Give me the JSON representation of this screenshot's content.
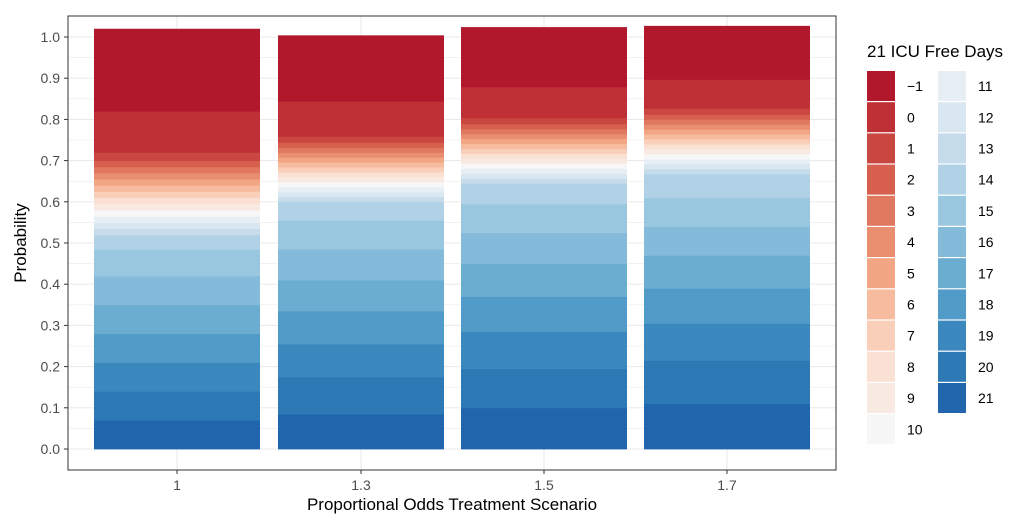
{
  "chart_data": {
    "type": "bar",
    "stacked": true,
    "title": "",
    "xlabel": "Proportional Odds Treatment Scenario",
    "ylabel": "Probability",
    "ylim": [
      0,
      1
    ],
    "yticks": [
      "0.0",
      "0.1",
      "0.2",
      "0.3",
      "0.4",
      "0.5",
      "0.6",
      "0.7",
      "0.8",
      "0.9",
      "1.0"
    ],
    "categories": [
      "1",
      "1.3",
      "1.5",
      "1.7"
    ],
    "grid": true,
    "legend": {
      "title": "21 ICU Free Days",
      "position": "right",
      "labels": [
        "−1",
        "0",
        "1",
        "2",
        "3",
        "4",
        "5",
        "6",
        "7",
        "8",
        "9",
        "10",
        "11",
        "12",
        "13",
        "14",
        "15",
        "16",
        "17",
        "18",
        "19",
        "20",
        "21"
      ]
    },
    "series_colors": [
      "#B2182B",
      "#BE3036",
      "#CA4741",
      "#D6604D",
      "#E0785F",
      "#E98F70",
      "#F3A683",
      "#F7BC9F",
      "#F9CFB9",
      "#FBE1D4",
      "#F8E9E3",
      "#F7F7F7",
      "#E8EFF4",
      "#D8E7F0",
      "#C6DCEB",
      "#B1D2E6",
      "#9AC7E0",
      "#84BADA",
      "#6BACD1",
      "#519BC8",
      "#3A88BD",
      "#2C79B5",
      "#2166AC"
    ],
    "series": [
      {
        "name": "−1",
        "values": [
          0.2,
          0.16,
          0.145,
          0.13
        ]
      },
      {
        "name": "0",
        "values": [
          0.1,
          0.085,
          0.075,
          0.07
        ]
      },
      {
        "name": "1",
        "values": [
          0.02,
          0.015,
          0.015,
          0.015
        ]
      },
      {
        "name": "2",
        "values": [
          0.015,
          0.012,
          0.012,
          0.012
        ]
      },
      {
        "name": "3",
        "values": [
          0.015,
          0.012,
          0.012,
          0.012
        ]
      },
      {
        "name": "4",
        "values": [
          0.015,
          0.012,
          0.012,
          0.012
        ]
      },
      {
        "name": "5",
        "values": [
          0.015,
          0.012,
          0.012,
          0.012
        ]
      },
      {
        "name": "6",
        "values": [
          0.015,
          0.012,
          0.012,
          0.012
        ]
      },
      {
        "name": "7",
        "values": [
          0.015,
          0.012,
          0.012,
          0.012
        ]
      },
      {
        "name": "8",
        "values": [
          0.015,
          0.012,
          0.012,
          0.012
        ]
      },
      {
        "name": "9",
        "values": [
          0.015,
          0.012,
          0.012,
          0.012
        ]
      },
      {
        "name": "10",
        "values": [
          0.015,
          0.012,
          0.012,
          0.012
        ]
      },
      {
        "name": "11",
        "values": [
          0.015,
          0.012,
          0.012,
          0.012
        ]
      },
      {
        "name": "12",
        "values": [
          0.015,
          0.012,
          0.012,
          0.012
        ]
      },
      {
        "name": "13",
        "values": [
          0.015,
          0.012,
          0.012,
          0.012
        ]
      },
      {
        "name": "14",
        "values": [
          0.035,
          0.045,
          0.05,
          0.058
        ]
      },
      {
        "name": "15",
        "values": [
          0.065,
          0.07,
          0.07,
          0.07
        ]
      },
      {
        "name": "16",
        "values": [
          0.07,
          0.075,
          0.075,
          0.07
        ]
      },
      {
        "name": "17",
        "values": [
          0.07,
          0.075,
          0.08,
          0.08
        ]
      },
      {
        "name": "18",
        "values": [
          0.07,
          0.08,
          0.085,
          0.085
        ]
      },
      {
        "name": "19",
        "values": [
          0.07,
          0.08,
          0.09,
          0.09
        ]
      },
      {
        "name": "20",
        "values": [
          0.07,
          0.09,
          0.095,
          0.105
        ]
      },
      {
        "name": "21",
        "values": [
          0.07,
          0.085,
          0.1,
          0.11
        ]
      }
    ]
  }
}
